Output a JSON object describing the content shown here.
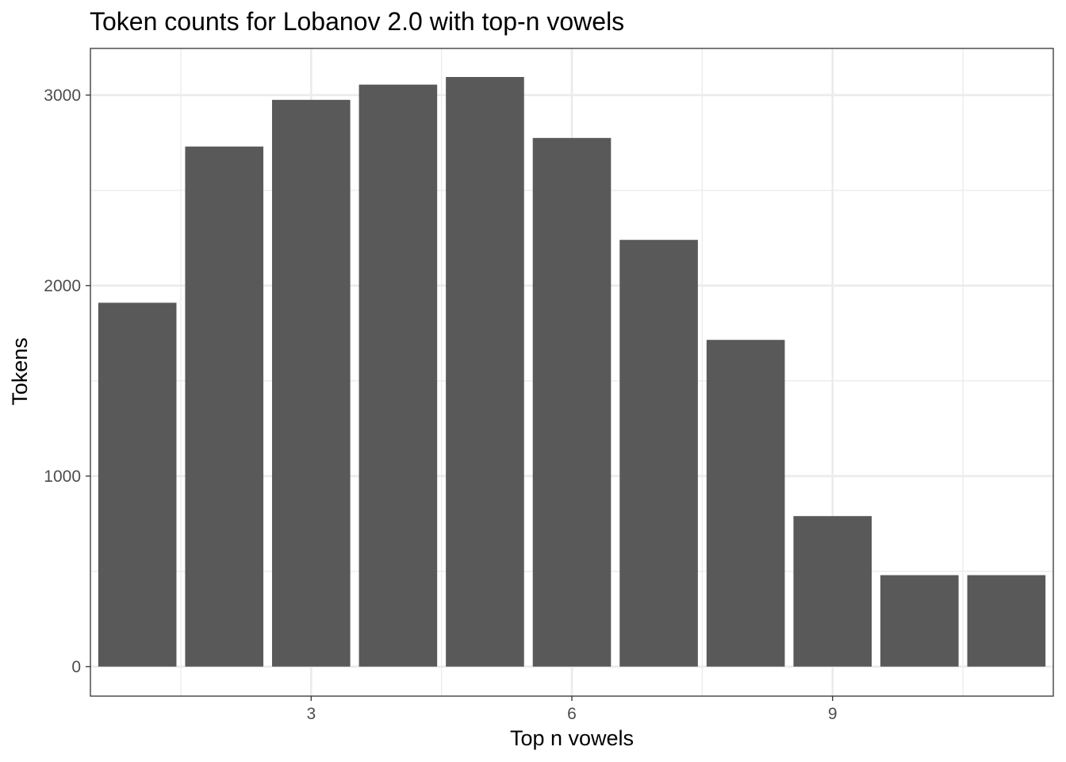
{
  "chart_data": {
    "type": "bar",
    "title": "Token counts for Lobanov 2.0 with top-n vowels",
    "xlabel": "Top n vowels",
    "ylabel": "Tokens",
    "x": [
      1,
      2,
      3,
      4,
      5,
      6,
      7,
      8,
      9,
      10,
      11
    ],
    "values": [
      1910,
      2730,
      2975,
      3055,
      3095,
      2775,
      2240,
      1715,
      790,
      480,
      480
    ],
    "xlim": [
      0.46,
      11.54
    ],
    "ylim": [
      -155,
      3245
    ],
    "xticks": [
      3,
      6,
      9
    ],
    "xtick_labels": [
      "3",
      "6",
      "9"
    ],
    "yticks": [
      0,
      1000,
      2000,
      3000
    ],
    "ytick_labels": [
      "0",
      "1000",
      "2000",
      "3000"
    ],
    "bar_color": "#595959",
    "grid": true,
    "theme": "bw"
  }
}
